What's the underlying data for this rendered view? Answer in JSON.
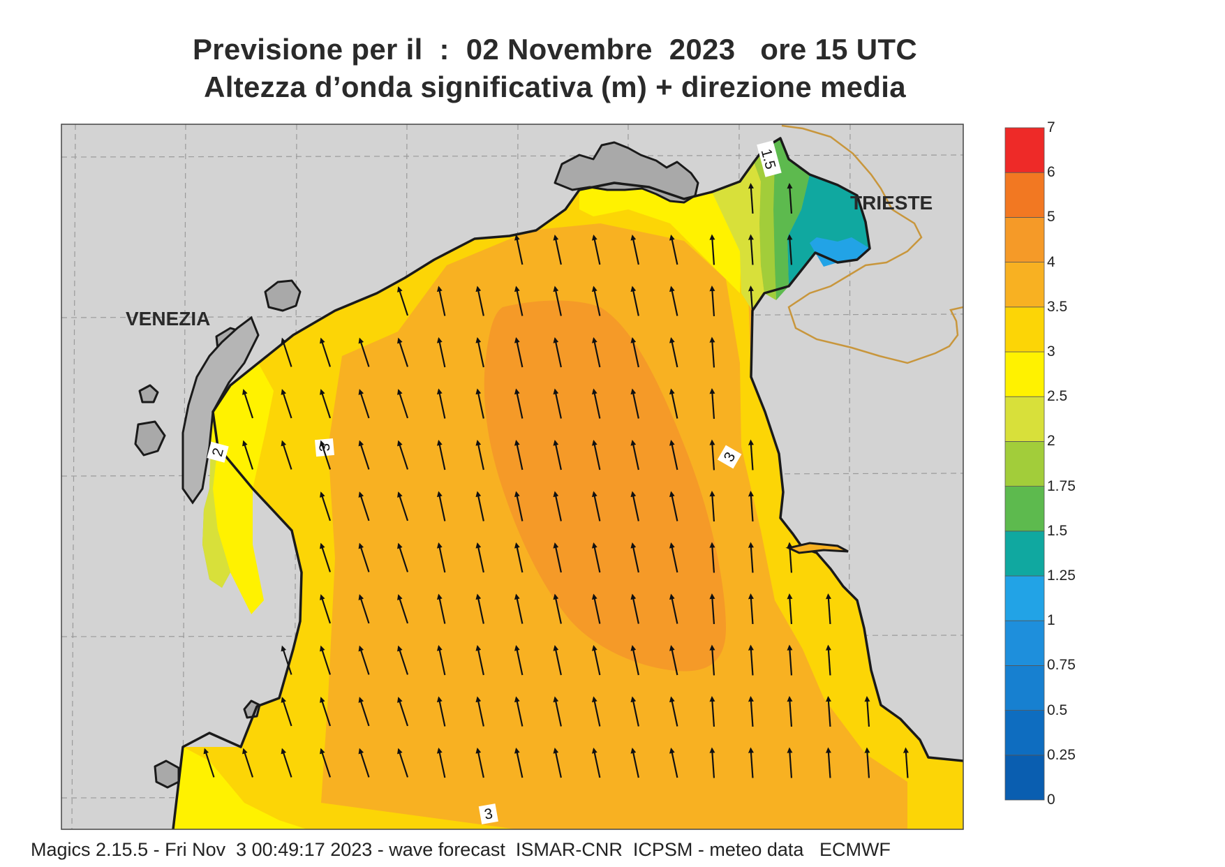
{
  "header": {
    "title_line1": "Previsione per il  :  02 Novembre  2023   ore 15 UTC",
    "title_line2": "Altezza d’onda significativa (m) + direzione media"
  },
  "map": {
    "cities": [
      {
        "id": "venezia",
        "label": "VENEZIA"
      },
      {
        "id": "trieste",
        "label": "TRIESTE"
      }
    ],
    "contour_labels": [
      "1.5",
      "2",
      "3",
      "3",
      "3"
    ],
    "land_color": "#d3d3d3",
    "coast_color": "#1a1a1a",
    "border_color": "#c8963c",
    "mean_wave_direction": "toward north-northwest"
  },
  "legend": {
    "items": [
      {
        "label": "0",
        "color": "#0a5eb0"
      },
      {
        "label": "0.25",
        "color": "#0e6dc0"
      },
      {
        "label": "0.5",
        "color": "#1780d0"
      },
      {
        "label": "0.75",
        "color": "#1e8fdc"
      },
      {
        "label": "1",
        "color": "#22a3e6"
      },
      {
        "label": "1.25",
        "color": "#10a8a0"
      },
      {
        "label": "1.5",
        "color": "#5dba4e"
      },
      {
        "label": "1.75",
        "color": "#a2cd3a"
      },
      {
        "label": "2",
        "color": "#d8e03a"
      },
      {
        "label": "2.5",
        "color": "#fff200"
      },
      {
        "label": "3",
        "color": "#fcd506"
      },
      {
        "label": "3.5",
        "color": "#f8b122"
      },
      {
        "label": "4",
        "color": "#f59a28"
      },
      {
        "label": "5",
        "color": "#f27822"
      },
      {
        "label": "6",
        "color": "#ee2a28"
      },
      {
        "label": "7",
        "color": "#ec1468"
      }
    ]
  },
  "footer": {
    "text": "Magics 2.15.5 - Fri Nov  3 00:49:17 2023 - wave forecast  ISMAR-CNR  ICPSM - meteo data   ECMWF"
  }
}
